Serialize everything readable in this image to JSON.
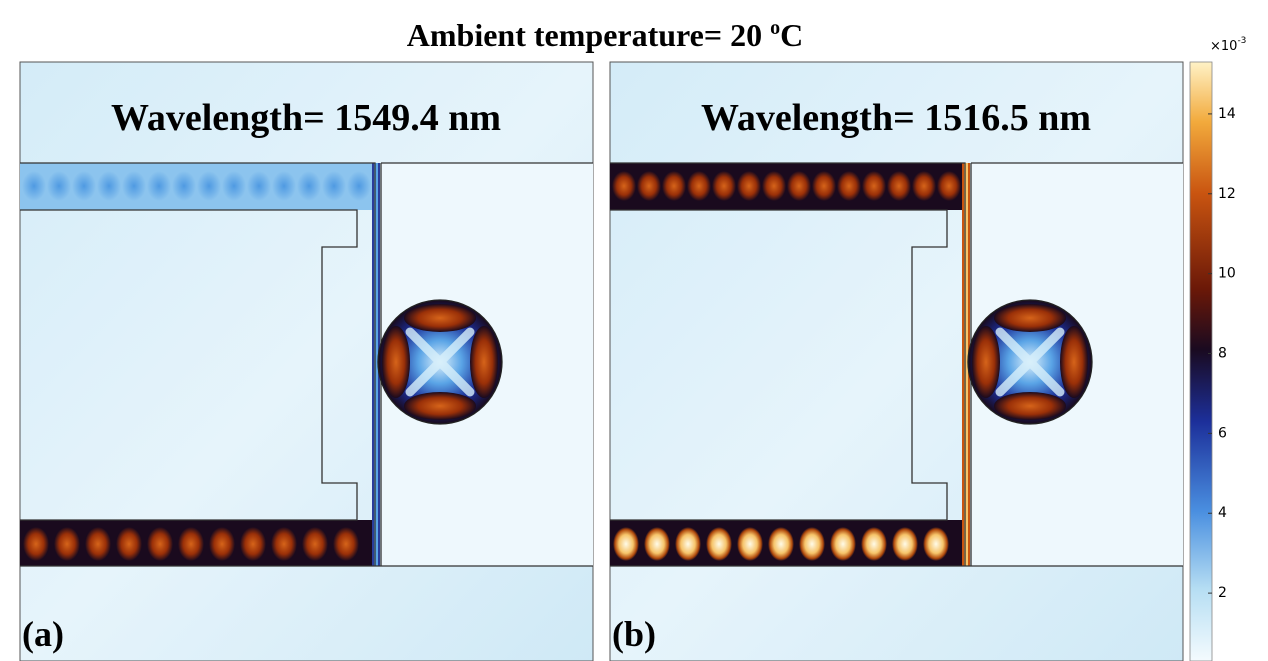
{
  "title": {
    "text": "Ambient temperature= 20 ",
    "superscript": "o",
    "unit": "C"
  },
  "panels": [
    {
      "label": "(a)",
      "caption": "Wavelength= 1549.4 nm"
    },
    {
      "label": "(b)",
      "caption": "Wavelength= 1516.5 nm"
    }
  ],
  "colorbar": {
    "multiplier": "×10",
    "exponent": "-3",
    "lim": [
      0.3,
      15.3
    ],
    "ticks": [
      2,
      4,
      6,
      8,
      10,
      12,
      14
    ]
  }
}
